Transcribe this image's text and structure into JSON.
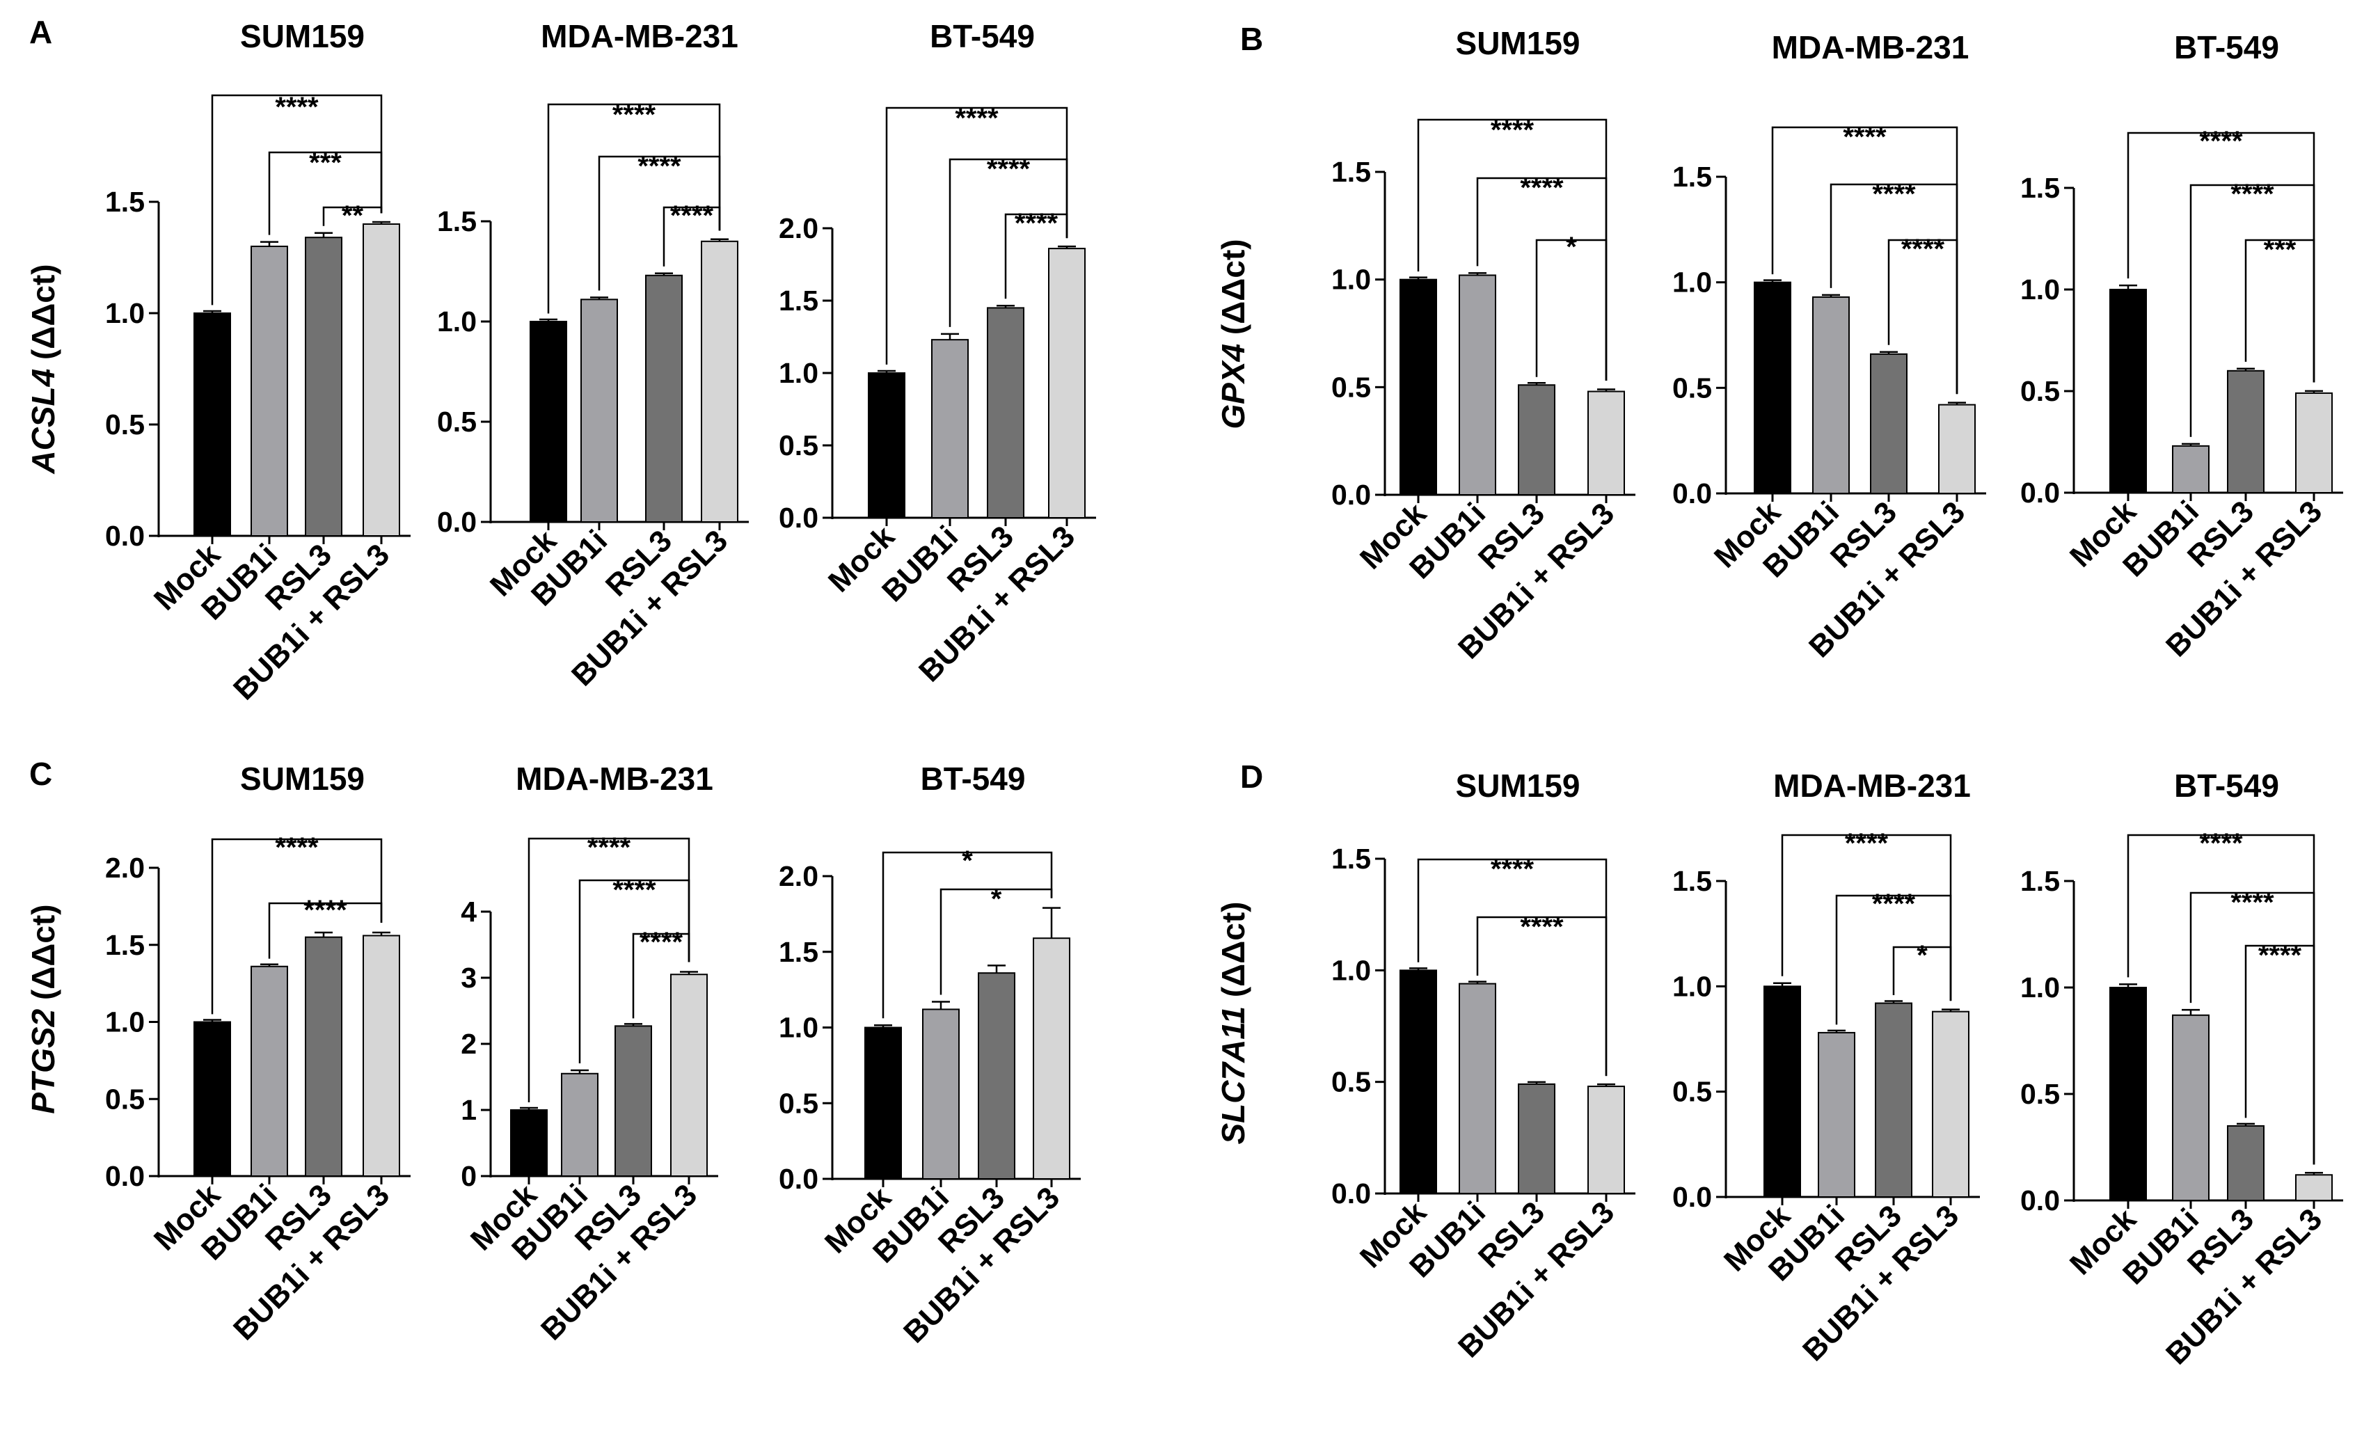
{
  "figure": {
    "groups": [
      {
        "letter": "A",
        "ylabel_gene": "ACSL4",
        "ylabel_unit": " (ΔΔct)"
      },
      {
        "letter": "B",
        "ylabel_gene": "GPX4",
        "ylabel_unit": " (ΔΔct)"
      },
      {
        "letter": "C",
        "ylabel_gene": "PTGS2",
        "ylabel_unit": " (ΔΔct)"
      },
      {
        "letter": "D",
        "ylabel_gene": "SLC7A11",
        "ylabel_unit": " (ΔΔct)"
      }
    ]
  },
  "chart_data": [
    {
      "type": "bar",
      "title": "SUM159",
      "categories": [
        "Mock",
        "BUB1i",
        "RSL3",
        "BUB1i + RSL3"
      ],
      "values": [
        1.0,
        1.3,
        1.34,
        1.4
      ],
      "errors": [
        0.005,
        0.02,
        0.02,
        0.005
      ],
      "colors": [
        "#000000",
        "#a2a2a6",
        "#727272",
        "#d6d6d6"
      ],
      "ylim": [
        0,
        1.5
      ],
      "yticks": [
        "0.0",
        "0.5",
        "1.0",
        "1.5"
      ],
      "ylabel": "ACSL4 (ΔΔct)",
      "comparisons": [
        {
          "from": 0,
          "to": 3,
          "label": "****"
        },
        {
          "from": 1,
          "to": 3,
          "label": "***"
        },
        {
          "from": 2,
          "to": 3,
          "label": "**"
        }
      ]
    },
    {
      "type": "bar",
      "title": "MDA-MB-231",
      "categories": [
        "Mock",
        "BUB1i",
        "RSL3",
        "BUB1i + RSL3"
      ],
      "values": [
        1.0,
        1.11,
        1.23,
        1.4
      ],
      "errors": [
        0.005,
        0.01,
        0.01,
        0.005
      ],
      "colors": [
        "#000000",
        "#a2a2a6",
        "#727272",
        "#d6d6d6"
      ],
      "ylim": [
        0,
        1.5
      ],
      "yticks": [
        "0.0",
        "0.5",
        "1.0",
        "1.5"
      ],
      "ylabel": "",
      "comparisons": [
        {
          "from": 0,
          "to": 3,
          "label": "****"
        },
        {
          "from": 1,
          "to": 3,
          "label": "****"
        },
        {
          "from": 2,
          "to": 3,
          "label": "****"
        }
      ]
    },
    {
      "type": "bar",
      "title": "BT-549",
      "categories": [
        "Mock",
        "BUB1i",
        "RSL3",
        "BUB1i + RSL3"
      ],
      "values": [
        1.0,
        1.23,
        1.45,
        1.86
      ],
      "errors": [
        0.01,
        0.04,
        0.015,
        0.005
      ],
      "colors": [
        "#000000",
        "#a2a2a6",
        "#727272",
        "#d6d6d6"
      ],
      "ylim": [
        0,
        2.0
      ],
      "yticks": [
        "0.0",
        "0.5",
        "1.0",
        "1.5",
        "2.0"
      ],
      "ylabel": "",
      "comparisons": [
        {
          "from": 0,
          "to": 3,
          "label": "****"
        },
        {
          "from": 1,
          "to": 3,
          "label": "****"
        },
        {
          "from": 2,
          "to": 3,
          "label": "****"
        }
      ]
    },
    {
      "type": "bar",
      "title": "SUM159",
      "categories": [
        "Mock",
        "BUB1i",
        "RSL3",
        "BUB1i + RSL3"
      ],
      "values": [
        1.0,
        1.02,
        0.51,
        0.48
      ],
      "errors": [
        0.005,
        0.01,
        0.005,
        0.005
      ],
      "colors": [
        "#000000",
        "#a2a2a6",
        "#727272",
        "#d6d6d6"
      ],
      "ylim": [
        0,
        1.5
      ],
      "yticks": [
        "0.0",
        "0.5",
        "1.0",
        "1.5"
      ],
      "ylabel": "GPX4 (ΔΔct)",
      "comparisons": [
        {
          "from": 0,
          "to": 3,
          "label": "****"
        },
        {
          "from": 1,
          "to": 3,
          "label": "****"
        },
        {
          "from": 2,
          "to": 3,
          "label": "*"
        }
      ]
    },
    {
      "type": "bar",
      "title": "MDA-MB-231",
      "categories": [
        "Mock",
        "BUB1i",
        "RSL3",
        "BUB1i + RSL3"
      ],
      "values": [
        1.0,
        0.93,
        0.66,
        0.42
      ],
      "errors": [
        0.005,
        0.01,
        0.01,
        0.005
      ],
      "colors": [
        "#000000",
        "#a2a2a6",
        "#727272",
        "#d6d6d6"
      ],
      "ylim": [
        0,
        1.5
      ],
      "yticks": [
        "0.0",
        "0.5",
        "1.0",
        "1.5"
      ],
      "ylabel": "",
      "comparisons": [
        {
          "from": 0,
          "to": 3,
          "label": "****"
        },
        {
          "from": 1,
          "to": 3,
          "label": "****"
        },
        {
          "from": 2,
          "to": 3,
          "label": "****"
        }
      ]
    },
    {
      "type": "bar",
      "title": "BT-549",
      "categories": [
        "Mock",
        "BUB1i",
        "RSL3",
        "BUB1i + RSL3"
      ],
      "values": [
        1.0,
        0.23,
        0.6,
        0.49
      ],
      "errors": [
        0.02,
        0.01,
        0.01,
        0.005
      ],
      "colors": [
        "#000000",
        "#a2a2a6",
        "#727272",
        "#d6d6d6"
      ],
      "ylim": [
        0,
        1.5
      ],
      "yticks": [
        "0.0",
        "0.5",
        "1.0",
        "1.5"
      ],
      "ylabel": "",
      "comparisons": [
        {
          "from": 0,
          "to": 3,
          "label": "****"
        },
        {
          "from": 1,
          "to": 3,
          "label": "****"
        },
        {
          "from": 2,
          "to": 3,
          "label": "***"
        }
      ]
    },
    {
      "type": "bar",
      "title": "SUM159",
      "categories": [
        "Mock",
        "BUB1i",
        "RSL3",
        "BUB1i + RSL3"
      ],
      "values": [
        1.0,
        1.36,
        1.55,
        1.56
      ],
      "errors": [
        0.005,
        0.005,
        0.03,
        0.02
      ],
      "colors": [
        "#000000",
        "#a2a2a6",
        "#727272",
        "#d6d6d6"
      ],
      "ylim": [
        0,
        2.0
      ],
      "yticks": [
        "0.0",
        "0.5",
        "1.0",
        "1.5",
        "2.0"
      ],
      "ylabel": "PTGS2 (ΔΔct)",
      "comparisons": [
        {
          "from": 0,
          "to": 3,
          "label": "****"
        },
        {
          "from": 1,
          "to": 3,
          "label": "****"
        }
      ]
    },
    {
      "type": "bar",
      "title": "MDA-MB-231",
      "categories": [
        "Mock",
        "BUB1i",
        "RSL3",
        "BUB1i + RSL3"
      ],
      "values": [
        1.0,
        1.55,
        2.27,
        3.05
      ],
      "errors": [
        0.01,
        0.05,
        0.01,
        0.04
      ],
      "colors": [
        "#000000",
        "#a2a2a6",
        "#727272",
        "#d6d6d6"
      ],
      "ylim": [
        0,
        4
      ],
      "yticks": [
        "0",
        "1",
        "2",
        "3",
        "4"
      ],
      "ylabel": "",
      "comparisons": [
        {
          "from": 0,
          "to": 3,
          "label": "****"
        },
        {
          "from": 1,
          "to": 3,
          "label": "****"
        },
        {
          "from": 2,
          "to": 3,
          "label": "****"
        }
      ]
    },
    {
      "type": "bar",
      "title": "BT-549",
      "categories": [
        "Mock",
        "BUB1i",
        "RSL3",
        "BUB1i + RSL3"
      ],
      "values": [
        1.0,
        1.12,
        1.36,
        1.59
      ],
      "errors": [
        0.015,
        0.05,
        0.05,
        0.2
      ],
      "colors": [
        "#000000",
        "#a2a2a6",
        "#727272",
        "#d6d6d6"
      ],
      "ylim": [
        0,
        2.0
      ],
      "yticks": [
        "0.0",
        "0.5",
        "1.0",
        "1.5",
        "2.0"
      ],
      "ylabel": "",
      "comparisons": [
        {
          "from": 0,
          "to": 3,
          "label": "*"
        },
        {
          "from": 1,
          "to": 3,
          "label": "*"
        }
      ]
    },
    {
      "type": "bar",
      "title": "SUM159",
      "categories": [
        "Mock",
        "BUB1i",
        "RSL3",
        "BUB1i + RSL3"
      ],
      "values": [
        1.0,
        0.94,
        0.49,
        0.48
      ],
      "errors": [
        0.005,
        0.005,
        0.003,
        0.003
      ],
      "colors": [
        "#000000",
        "#a2a2a6",
        "#727272",
        "#d6d6d6"
      ],
      "ylim": [
        0,
        1.5
      ],
      "yticks": [
        "0.0",
        "0.5",
        "1.0",
        "1.5"
      ],
      "ylabel": "SLC7A11 (ΔΔct)",
      "comparisons": [
        {
          "from": 0,
          "to": 3,
          "label": "****"
        },
        {
          "from": 1,
          "to": 3,
          "label": "****"
        }
      ]
    },
    {
      "type": "bar",
      "title": "MDA-MB-231",
      "categories": [
        "Mock",
        "BUB1i",
        "RSL3",
        "BUB1i + RSL3"
      ],
      "values": [
        1.0,
        0.78,
        0.92,
        0.88
      ],
      "errors": [
        0.015,
        0.005,
        0.005,
        0.005
      ],
      "colors": [
        "#000000",
        "#a2a2a6",
        "#727272",
        "#d6d6d6"
      ],
      "ylim": [
        0,
        1.5
      ],
      "yticks": [
        "0.0",
        "0.5",
        "1.0",
        "1.5"
      ],
      "ylabel": "",
      "comparisons": [
        {
          "from": 0,
          "to": 3,
          "label": "****"
        },
        {
          "from": 1,
          "to": 3,
          "label": "****"
        },
        {
          "from": 2,
          "to": 3,
          "label": "*"
        }
      ]
    },
    {
      "type": "bar",
      "title": "BT-549",
      "categories": [
        "Mock",
        "BUB1i",
        "RSL3",
        "BUB1i + RSL3"
      ],
      "values": [
        1.0,
        0.87,
        0.35,
        0.12
      ],
      "errors": [
        0.015,
        0.025,
        0.005,
        0.003
      ],
      "colors": [
        "#000000",
        "#a2a2a6",
        "#727272",
        "#d6d6d6"
      ],
      "ylim": [
        0,
        1.5
      ],
      "yticks": [
        "0.0",
        "0.5",
        "1.0",
        "1.5"
      ],
      "ylabel": "",
      "comparisons": [
        {
          "from": 0,
          "to": 3,
          "label": "****"
        },
        {
          "from": 1,
          "to": 3,
          "label": "****"
        },
        {
          "from": 2,
          "to": 3,
          "label": "****"
        }
      ]
    }
  ]
}
